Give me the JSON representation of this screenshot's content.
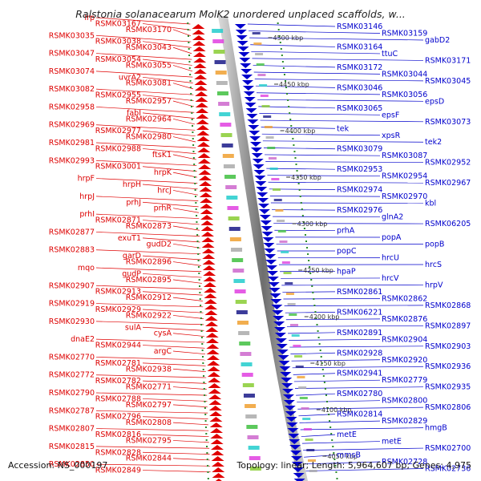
{
  "title": "Ralstonia solanacearum MolK2 unordered unplaced scaffolds, w...",
  "footer": {
    "accession": "Accession: NS_000197",
    "topology": "Topology: linear; Length: 5,964,607 bp; Genes: 4,975"
  },
  "colors": {
    "left_genes": "#e00000",
    "right_genes": "#0000cc",
    "ribbon": "#888888"
  },
  "scale_labels": [
    {
      "text": "4500 kbp"
    },
    {
      "text": "4450 kbp"
    },
    {
      "text": "4400 kbp"
    },
    {
      "text": "4350 kbp"
    },
    {
      "text": "4300 kbp"
    },
    {
      "text": "4250 kbp"
    },
    {
      "text": "4200 kbp"
    },
    {
      "text": "4150 kbp"
    },
    {
      "text": "4100 kbp"
    },
    {
      "text": "4050 kbp"
    }
  ],
  "left_labels": [
    "lrp",
    "RSMK03167",
    "RSMK03170",
    "RSMK03035",
    "RSMK03038",
    "RSMK03043",
    "RSMK03047",
    "RSMK03054",
    "RSMK03055",
    "RSMK03074",
    "uvrA2",
    "RSMK03081",
    "RSMK03082",
    "RSMK02955",
    "RSMK02957",
    "RSMK02958",
    "fabI",
    "RSMK02964",
    "RSMK02969",
    "RSMK02977",
    "RSMK02980",
    "RSMK02981",
    "RSMK02988",
    "ftsK1",
    "RSMK02993",
    "RSMK03001",
    "hrpK",
    "hrpF",
    "hrpH",
    "hrcJ",
    "hrpJ",
    "prhJ",
    "prhR",
    "prhI",
    "RSMK02871",
    "RSMK02873",
    "RSMK02877",
    "exuT1",
    "gudD2",
    "RSMK02883",
    "garD",
    "RSMK02896",
    "mqo",
    "gudP",
    "RSMK02895",
    "RSMK02907",
    "RSMK02913",
    "RSMK02912",
    "RSMK02919",
    "RSMK02929",
    "RSMK02922",
    "RSMK02930",
    "sulA",
    "cysA",
    "dnaE2",
    "RSMK02944",
    "argC",
    "RSMK02770",
    "RSMK02781",
    "RSMK02938",
    "RSMK02772",
    "RSMK02782",
    "RSMK02771",
    "RSMK02790",
    "RSMK02788",
    "RSMK02797",
    "RSMK02787",
    "RSMK02796",
    "RSMK02808",
    "RSMK02807",
    "RSMK02816",
    "RSMK02795",
    "RSMK02815",
    "RSMK02828",
    "RSMK02844",
    "RSMK02850",
    "RSMK02849"
  ],
  "right_labels": [
    "RSMK03146",
    "RSMK03159",
    "gabD2",
    "RSMK03164",
    "ttuC",
    "RSMK03171",
    "RSMK03172",
    "RSMK03044",
    "RSMK03045",
    "RSMK03046",
    "RSMK03056",
    "epsD",
    "RSMK03065",
    "epsF",
    "RSMK03073",
    "tek",
    "xpsR",
    "tek2",
    "RSMK03079",
    "RSMK03087",
    "RSMK02952",
    "RSMK02953",
    "RSMK02954",
    "RSMK02967",
    "RSMK02974",
    "RSMK02970",
    "kbl",
    "RSMK02976",
    "glnA2",
    "RSMK06205",
    "prhA",
    "popA",
    "popB",
    "popC",
    "hrcU",
    "hrcS",
    "hpaP",
    "hrcV",
    "hrpV",
    "RSMK02861",
    "RSMK02862",
    "RSMK02868",
    "RSMK06221",
    "RSMK02876",
    "RSMK02897",
    "RSMK02891",
    "RSMK02904",
    "RSMK02903",
    "RSMK02928",
    "RSMK02920",
    "RSMK02936",
    "RSMK02941",
    "RSMK02779",
    "RSMK02935",
    "RSMK02780",
    "RSMK02800",
    "RSMK02806",
    "RSMK02814",
    "RSMK02829",
    "hmgB",
    "metE",
    "metE",
    "RSMK02700",
    "mmsB",
    "RSMK02728",
    "RSMK02736"
  ]
}
